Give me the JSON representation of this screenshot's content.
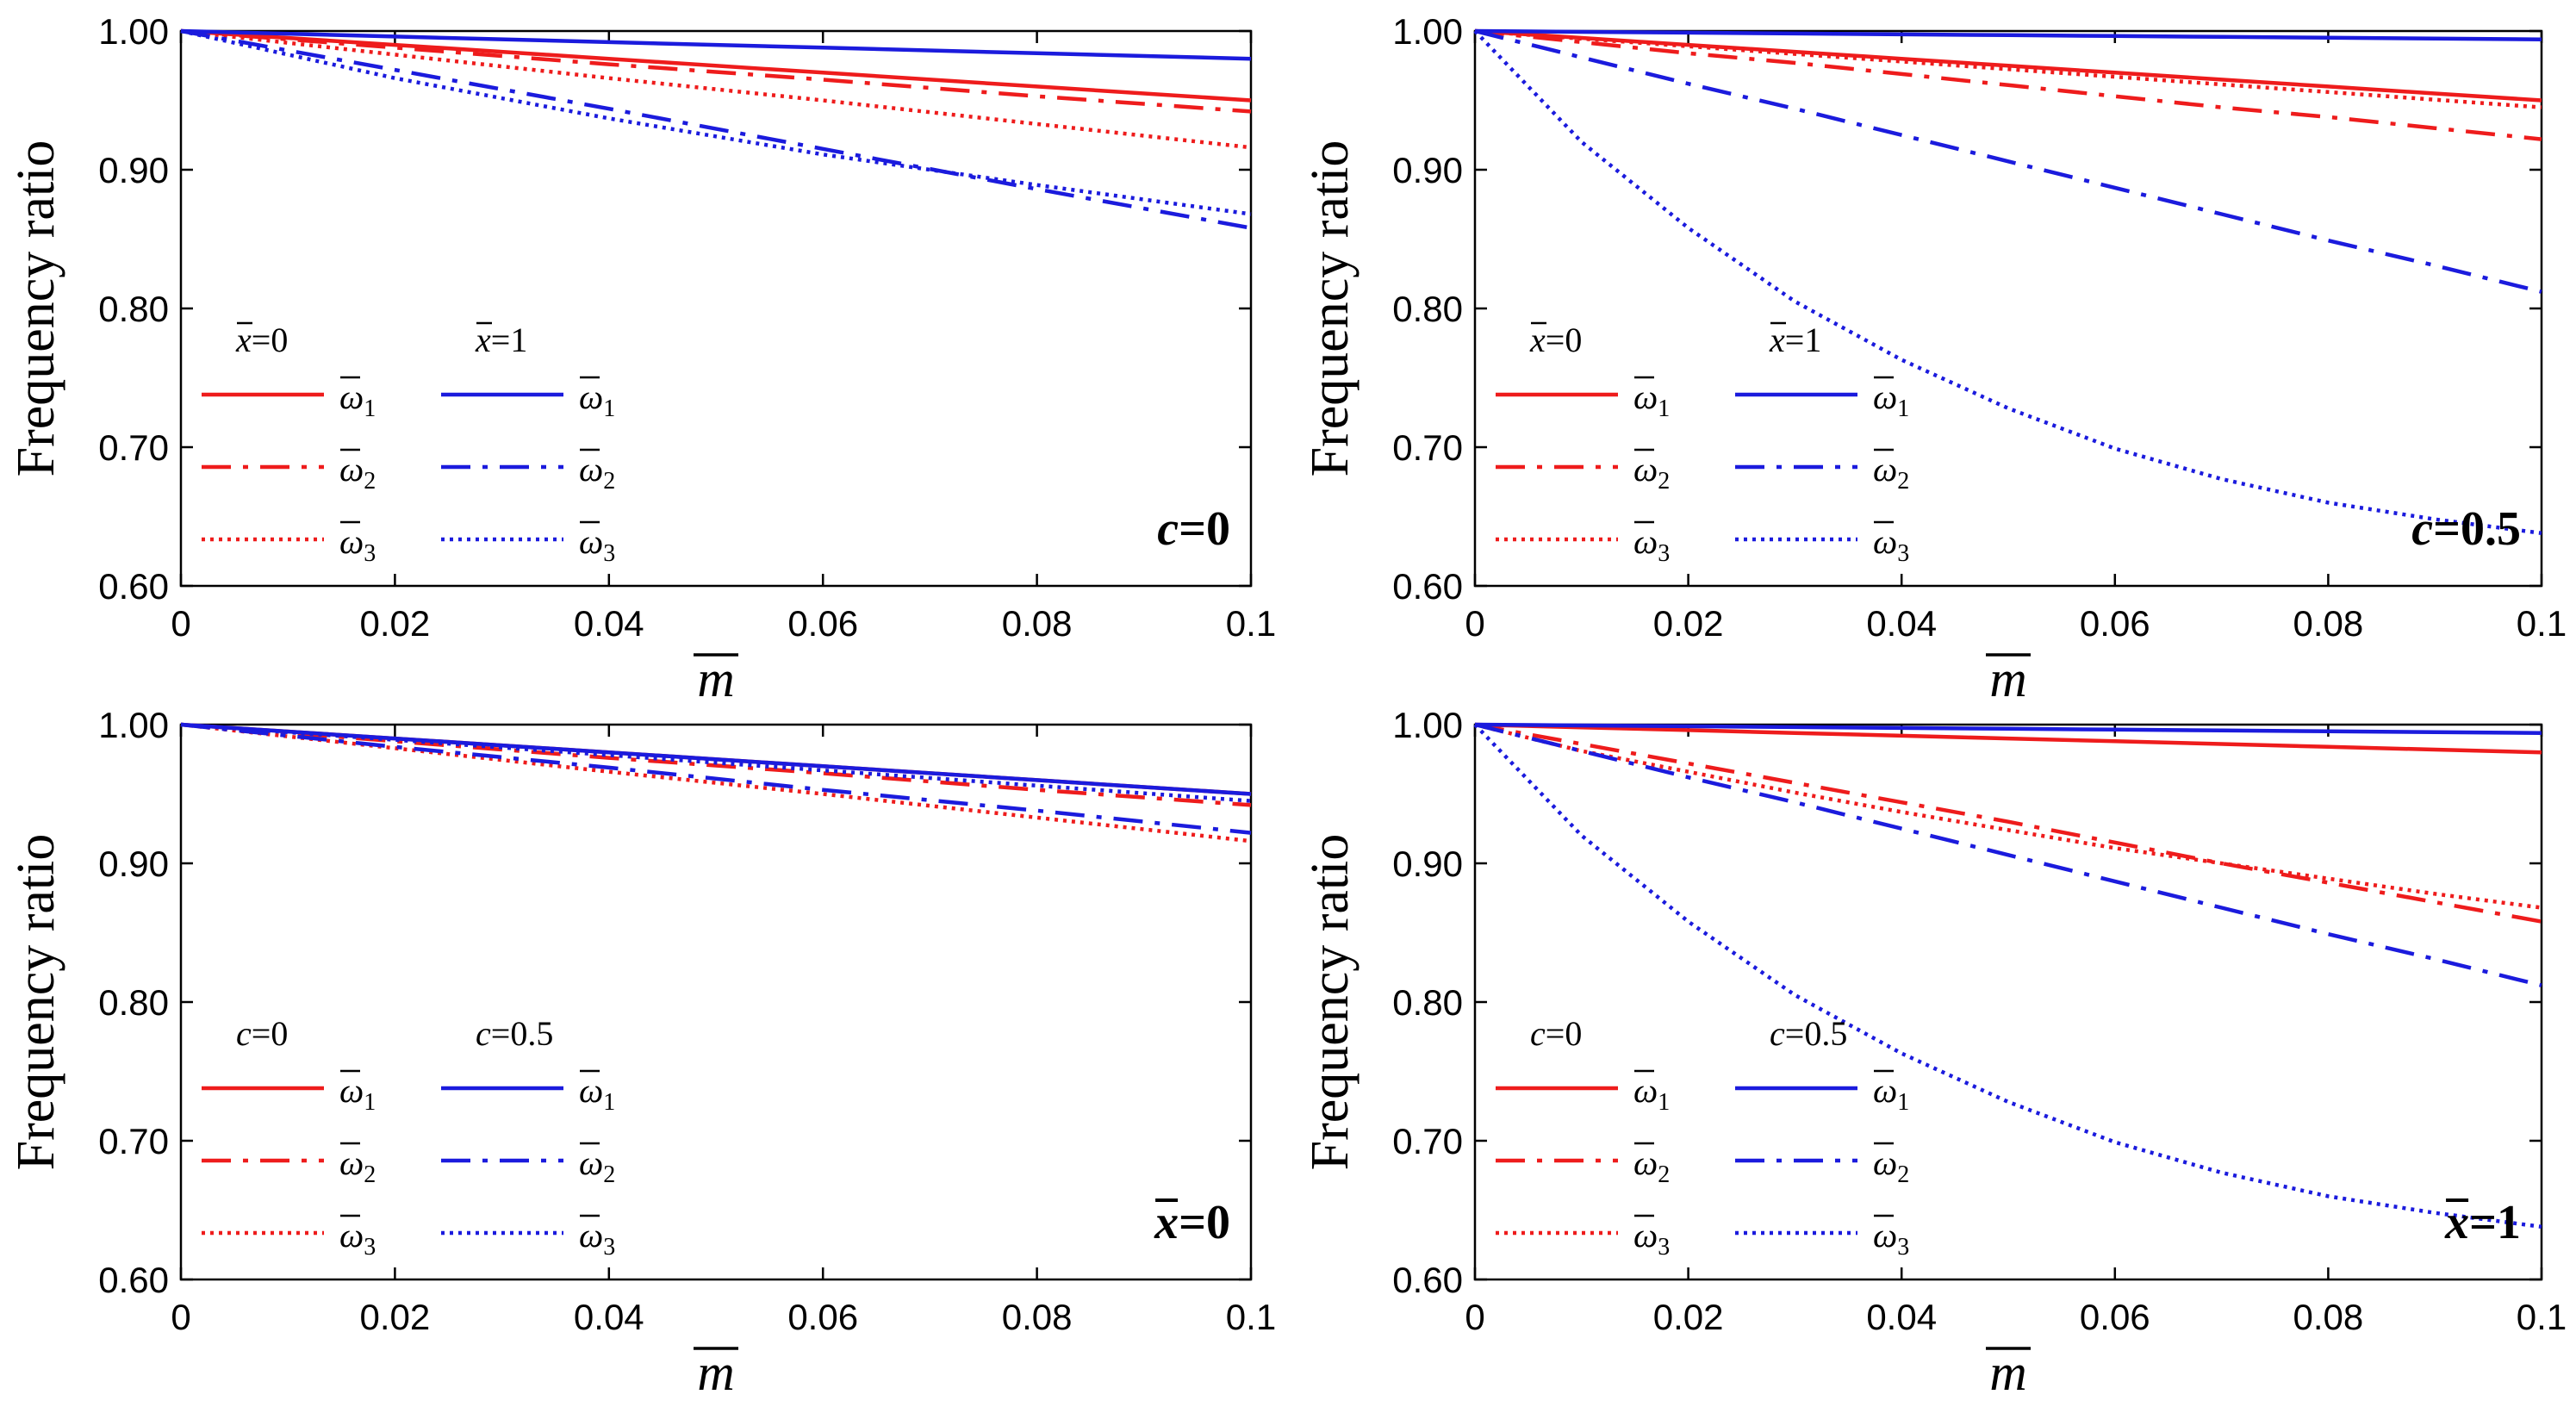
{
  "colors": {
    "red": "#ee1c1c",
    "blue": "#1b1bdd",
    "axis": "#000000"
  },
  "chart_data": [
    {
      "type": "line",
      "title": "",
      "annotation": "c=0",
      "annotation_parts": {
        "var": "c",
        "eq": "=0",
        "bar": false
      },
      "xlabel": "m",
      "ylabel": "Frequency ratio",
      "xlim": [
        0,
        0.1
      ],
      "ylim": [
        0.6,
        1.0
      ],
      "xticks": [
        "0",
        "0.02",
        "0.04",
        "0.06",
        "0.08",
        "0.1"
      ],
      "yticks": [
        "0.60",
        "0.70",
        "0.80",
        "0.90",
        "1.00"
      ],
      "legend": {
        "group_titles": [
          "x =0",
          "x =1"
        ],
        "group_vars": [
          "x",
          "x"
        ],
        "group_vals": [
          "=0",
          "=1"
        ],
        "group_bar": true,
        "entries": [
          "ω1",
          "ω2",
          "ω3"
        ],
        "entry_sym": "ω",
        "entry_subs": [
          "1",
          "2",
          "3"
        ]
      },
      "x": [
        0,
        0.02,
        0.04,
        0.06,
        0.08,
        0.1
      ],
      "series": [
        {
          "name": "ω1",
          "group": "x =0",
          "color": "red",
          "style": "solid",
          "values": [
            1.0,
            0.99,
            0.98,
            0.97,
            0.96,
            0.95
          ]
        },
        {
          "name": "ω2",
          "group": "x =0",
          "color": "red",
          "style": "dashdot",
          "values": [
            1.0,
            0.988,
            0.976,
            0.965,
            0.953,
            0.942
          ]
        },
        {
          "name": "ω3",
          "group": "x =0",
          "color": "red",
          "style": "dotted",
          "values": [
            1.0,
            0.983,
            0.966,
            0.95,
            0.933,
            0.916
          ]
        },
        {
          "name": "ω1",
          "group": "x =1",
          "color": "blue",
          "style": "solid",
          "values": [
            1.0,
            0.996,
            0.992,
            0.988,
            0.984,
            0.98
          ]
        },
        {
          "name": "ω2",
          "group": "x =1",
          "color": "blue",
          "style": "dashdot",
          "values": [
            1.0,
            0.972,
            0.944,
            0.915,
            0.886,
            0.858
          ]
        },
        {
          "name": "ω3",
          "group": "x =1",
          "color": "blue",
          "style": "dotted",
          "values": [
            1.0,
            0.966,
            0.937,
            0.911,
            0.889,
            0.868
          ]
        }
      ]
    },
    {
      "type": "line",
      "title": "",
      "annotation": "c=0.5",
      "annotation_parts": {
        "var": "c",
        "eq": "=0.5",
        "bar": false
      },
      "xlabel": "m",
      "ylabel": "Frequency ratio",
      "xlim": [
        0,
        0.1
      ],
      "ylim": [
        0.6,
        1.0
      ],
      "xticks": [
        "0",
        "0.02",
        "0.04",
        "0.06",
        "0.08",
        "0.1"
      ],
      "yticks": [
        "0.60",
        "0.70",
        "0.80",
        "0.90",
        "1.00"
      ],
      "legend": {
        "group_titles": [
          "x =0",
          "x =1"
        ],
        "group_vars": [
          "x",
          "x"
        ],
        "group_vals": [
          "=0",
          "=1"
        ],
        "group_bar": true,
        "entries": [
          "ω1",
          "ω2",
          "ω3"
        ],
        "entry_sym": "ω",
        "entry_subs": [
          "1",
          "2",
          "3"
        ]
      },
      "x": [
        0,
        0.01,
        0.02,
        0.03,
        0.04,
        0.05,
        0.06,
        0.07,
        0.08,
        0.09,
        0.1
      ],
      "series": [
        {
          "name": "ω1",
          "group": "x =0",
          "color": "red",
          "style": "solid",
          "values": [
            1.0,
            0.995,
            0.99,
            0.985,
            0.98,
            0.975,
            0.97,
            0.965,
            0.96,
            0.955,
            0.95
          ]
        },
        {
          "name": "ω2",
          "group": "x =0",
          "color": "red",
          "style": "dashdot",
          "values": [
            1.0,
            0.992,
            0.984,
            0.977,
            0.969,
            0.961,
            0.953,
            0.945,
            0.938,
            0.93,
            0.922
          ]
        },
        {
          "name": "ω3",
          "group": "x =0",
          "color": "red",
          "style": "dotted",
          "values": [
            1.0,
            0.9945,
            0.989,
            0.9835,
            0.978,
            0.9725,
            0.967,
            0.9615,
            0.956,
            0.9505,
            0.945
          ]
        },
        {
          "name": "ω1",
          "group": "x =1",
          "color": "blue",
          "style": "solid",
          "values": [
            1.0,
            0.9994,
            0.9988,
            0.9982,
            0.9976,
            0.997,
            0.9964,
            0.9958,
            0.9952,
            0.9946,
            0.994
          ]
        },
        {
          "name": "ω2",
          "group": "x =1",
          "color": "blue",
          "style": "dashdot",
          "values": [
            1.0,
            0.981,
            0.962,
            0.944,
            0.925,
            0.906,
            0.887,
            0.868,
            0.849,
            0.831,
            0.812
          ]
        },
        {
          "name": "ω3",
          "group": "x =1",
          "color": "blue",
          "style": "dotted",
          "values": [
            1.0,
            0.92,
            0.858,
            0.805,
            0.763,
            0.728,
            0.699,
            0.677,
            0.66,
            0.648,
            0.638
          ]
        }
      ]
    },
    {
      "type": "line",
      "title": "",
      "annotation": "x=0",
      "annotation_parts": {
        "var": "x",
        "eq": "=0",
        "bar": true
      },
      "xlabel": "m",
      "ylabel": "Frequency ratio",
      "xlim": [
        0,
        0.1
      ],
      "ylim": [
        0.6,
        1.0
      ],
      "xticks": [
        "0",
        "0.02",
        "0.04",
        "0.06",
        "0.08",
        "0.1"
      ],
      "yticks": [
        "0.60",
        "0.70",
        "0.80",
        "0.90",
        "1.00"
      ],
      "legend": {
        "group_titles": [
          "c=0",
          "c=0.5"
        ],
        "group_vars": [
          "c",
          "c"
        ],
        "group_vals": [
          "=0",
          "=0.5"
        ],
        "group_bar": false,
        "entries": [
          "ω1",
          "ω2",
          "ω3"
        ],
        "entry_sym": "ω",
        "entry_subs": [
          "1",
          "2",
          "3"
        ]
      },
      "x": [
        0,
        0.02,
        0.04,
        0.06,
        0.08,
        0.1
      ],
      "series": [
        {
          "name": "ω1",
          "group": "c=0",
          "color": "red",
          "style": "solid",
          "values": [
            1.0,
            0.99,
            0.98,
            0.97,
            0.96,
            0.95
          ]
        },
        {
          "name": "ω2",
          "group": "c=0",
          "color": "red",
          "style": "dashdot",
          "values": [
            1.0,
            0.988,
            0.976,
            0.965,
            0.953,
            0.942
          ]
        },
        {
          "name": "ω3",
          "group": "c=0",
          "color": "red",
          "style": "dotted",
          "values": [
            1.0,
            0.983,
            0.966,
            0.95,
            0.933,
            0.916
          ]
        },
        {
          "name": "ω1",
          "group": "c=0.5",
          "color": "blue",
          "style": "solid",
          "values": [
            1.0,
            0.99,
            0.98,
            0.97,
            0.96,
            0.95
          ]
        },
        {
          "name": "ω2",
          "group": "c=0.5",
          "color": "blue",
          "style": "dashdot",
          "values": [
            1.0,
            0.984,
            0.969,
            0.953,
            0.938,
            0.922
          ]
        },
        {
          "name": "ω3",
          "group": "c=0.5",
          "color": "blue",
          "style": "dotted",
          "values": [
            1.0,
            0.989,
            0.978,
            0.967,
            0.956,
            0.945
          ]
        }
      ]
    },
    {
      "type": "line",
      "title": "",
      "annotation": "x=1",
      "annotation_parts": {
        "var": "x",
        "eq": "=1",
        "bar": true
      },
      "xlabel": "m",
      "ylabel": "Frequency ratio",
      "xlim": [
        0,
        0.1
      ],
      "ylim": [
        0.6,
        1.0
      ],
      "xticks": [
        "0",
        "0.02",
        "0.04",
        "0.06",
        "0.08",
        "0.1"
      ],
      "yticks": [
        "0.60",
        "0.70",
        "0.80",
        "0.90",
        "1.00"
      ],
      "legend": {
        "group_titles": [
          "c=0",
          "c=0.5"
        ],
        "group_vars": [
          "c",
          "c"
        ],
        "group_vals": [
          "=0",
          "=0.5"
        ],
        "group_bar": false,
        "entries": [
          "ω1",
          "ω2",
          "ω3"
        ],
        "entry_sym": "ω",
        "entry_subs": [
          "1",
          "2",
          "3"
        ]
      },
      "x": [
        0,
        0.01,
        0.02,
        0.03,
        0.04,
        0.05,
        0.06,
        0.07,
        0.08,
        0.09,
        0.1
      ],
      "series": [
        {
          "name": "ω1",
          "group": "c=0",
          "color": "red",
          "style": "solid",
          "values": [
            1.0,
            0.998,
            0.996,
            0.994,
            0.992,
            0.99,
            0.988,
            0.986,
            0.984,
            0.982,
            0.98
          ]
        },
        {
          "name": "ω2",
          "group": "c=0",
          "color": "red",
          "style": "dashdot",
          "values": [
            1.0,
            0.986,
            0.972,
            0.958,
            0.944,
            0.93,
            0.915,
            0.9,
            0.886,
            0.872,
            0.858
          ]
        },
        {
          "name": "ω3",
          "group": "c=0",
          "color": "red",
          "style": "dotted",
          "values": [
            1.0,
            0.981,
            0.966,
            0.951,
            0.937,
            0.924,
            0.911,
            0.9,
            0.889,
            0.878,
            0.868
          ]
        },
        {
          "name": "ω1",
          "group": "c=0.5",
          "color": "blue",
          "style": "solid",
          "values": [
            1.0,
            0.9994,
            0.9988,
            0.9982,
            0.9976,
            0.997,
            0.9964,
            0.9958,
            0.9952,
            0.9946,
            0.994
          ]
        },
        {
          "name": "ω2",
          "group": "c=0.5",
          "color": "blue",
          "style": "dashdot",
          "values": [
            1.0,
            0.981,
            0.962,
            0.944,
            0.925,
            0.906,
            0.887,
            0.868,
            0.849,
            0.831,
            0.812
          ]
        },
        {
          "name": "ω3",
          "group": "c=0.5",
          "color": "blue",
          "style": "dotted",
          "values": [
            1.0,
            0.92,
            0.858,
            0.805,
            0.763,
            0.728,
            0.699,
            0.677,
            0.66,
            0.648,
            0.638
          ]
        }
      ]
    }
  ]
}
